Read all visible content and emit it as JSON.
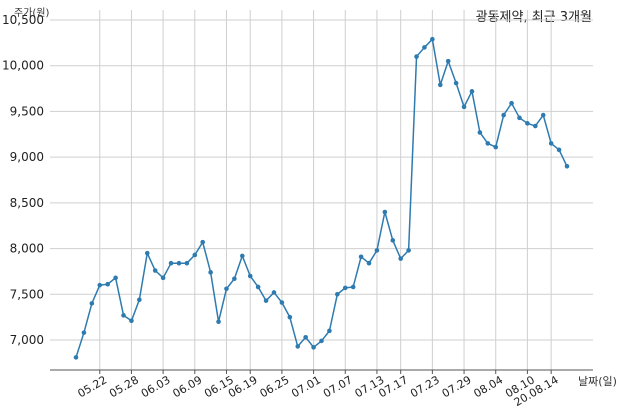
{
  "chart_data": {
    "type": "line",
    "title": "광동제약, 최근 3개월",
    "xlabel": "날짜(일)",
    "ylabel": "주가(원)",
    "ylim": [
      6650,
      10500
    ],
    "yticks": [
      7000,
      7500,
      8000,
      8500,
      9000,
      9500,
      10000,
      10500
    ],
    "ytick_labels": [
      "7,000",
      "7,500",
      "8,000",
      "8,500",
      "9,000",
      "9,500",
      "10,000",
      "10,500"
    ],
    "xticks": [
      "05.22",
      "05.28",
      "06.03",
      "06.09",
      "06.15",
      "06.19",
      "06.25",
      "07.01",
      "07.07",
      "07.13",
      "07.17",
      "07.23",
      "07.29",
      "08.04",
      "08.10",
      "20.08.14"
    ],
    "xtick_index": [
      3,
      7,
      11,
      15,
      19,
      22,
      26,
      30,
      34,
      38,
      41,
      45,
      49,
      53,
      57,
      60
    ],
    "grid": true,
    "line_color": "#2e7bb0",
    "series": [
      {
        "values": [
          6810,
          7080,
          7400,
          7600,
          7610,
          7680,
          7270,
          7210,
          7440,
          7950,
          7760,
          7680,
          7840,
          7840,
          7840,
          7930,
          8070,
          7740,
          7200,
          7560,
          7670,
          7920,
          7700,
          7580,
          7430,
          7520,
          7410,
          7250,
          6930,
          7030,
          6920,
          6990,
          7100,
          7500,
          7570,
          7580,
          7910,
          7840,
          7980,
          8400,
          8090,
          7890,
          7980,
          10100,
          10200,
          10290,
          9790,
          10050,
          9810,
          9550,
          9720,
          9270,
          9150,
          9110,
          9460,
          9590,
          9430,
          9370,
          9340,
          9460,
          9150,
          9080,
          8900
        ]
      }
    ]
  }
}
